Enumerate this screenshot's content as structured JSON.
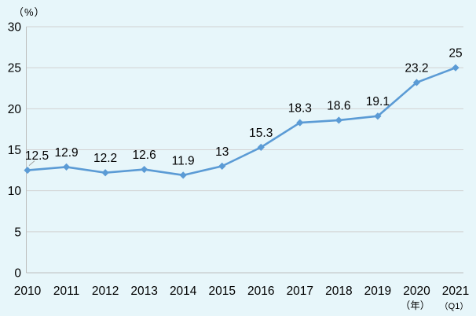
{
  "chart_data": {
    "type": "line",
    "title": "",
    "unit_label": "（%）",
    "xlabel": "",
    "ylabel": "",
    "categories": [
      "2010",
      "2011",
      "2012",
      "2013",
      "2014",
      "2015",
      "2016",
      "2017",
      "2018",
      "2019",
      "2020",
      "2021"
    ],
    "category_suffixes": [
      "",
      "",
      "",
      "",
      "",
      "",
      "",
      "",
      "",
      "",
      "（年）",
      "（Q1）"
    ],
    "series": [
      {
        "name": "",
        "values": [
          12.5,
          12.9,
          12.2,
          12.6,
          11.9,
          13,
          15.3,
          18.3,
          18.6,
          19.1,
          23.2,
          25
        ]
      }
    ],
    "data_labels": [
      "12.5",
      "12.9",
      "12.2",
      "12.6",
      "11.9",
      "13",
      "15.3",
      "18.3",
      "18.6",
      "19.1",
      "23.2",
      "25"
    ],
    "ylim": [
      0,
      30
    ],
    "yticks": [
      0,
      5,
      10,
      15,
      20,
      25,
      30
    ],
    "grid": true,
    "legend": false,
    "marker": "diamond",
    "colors": {
      "line": "#5B9BD5",
      "marker": "#5B9BD5",
      "background": "#E7F6FA",
      "gridline": "#D2D2D2",
      "axis": "#BDBDBD",
      "leader_line": "#A0A0A0",
      "text": "#000000"
    }
  }
}
